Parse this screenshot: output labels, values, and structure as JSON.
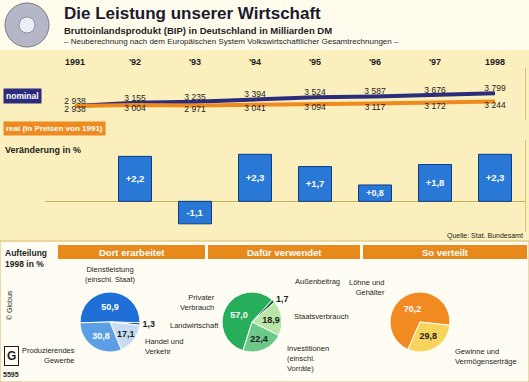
{
  "chart_data": [
    {
      "type": "line",
      "title": "Die Leistung unserer Wirtschaft",
      "subtitle": "Bruttoinlandsprodukt (BIP) in Deutschland in Milliarden DM",
      "annotations": [
        "– Neuberechnung nach dem Europäischen System Volkswirtschaftlicher Gesamtrechnungen –",
        "Quelle: Stat. Bundesamt",
        "© Globus",
        "G",
        "5595"
      ],
      "categories": [
        "1991",
        "'92",
        "'93",
        "'94",
        "'95",
        "'96",
        "'97",
        "1998"
      ],
      "series": [
        {
          "name": "nominal",
          "color": "#2b2d7c",
          "values": [
            2938,
            3155,
            3235,
            3394,
            3524,
            3587,
            3676,
            3799
          ],
          "value_labels": [
            "2 938",
            "3 155",
            "3 235",
            "3 394",
            "3 524",
            "3 587",
            "3 676",
            "3 799"
          ]
        },
        {
          "name": "real (in Preisen von 1991)",
          "color": "#ef8a1f",
          "values": [
            2938,
            3004,
            2971,
            3041,
            3094,
            3117,
            3172,
            3244
          ],
          "value_labels": [
            "2 938",
            "3 004",
            "2 971",
            "3 041",
            "3 094",
            "3 117",
            "3 172",
            "3 244"
          ]
        }
      ],
      "ylim": [
        2000,
        5500
      ],
      "yticks": [],
      "tick_labels": "x",
      "data_labels": true
    },
    {
      "type": "bar",
      "title": "Veränderung in %",
      "categories": [
        "1991",
        "'92",
        "'93",
        "'94",
        "'95",
        "'96",
        "'97",
        "1998"
      ],
      "values": [
        null,
        2.2,
        -1.1,
        2.3,
        1.7,
        0.8,
        1.8,
        2.3
      ],
      "value_labels": [
        null,
        "+2,2",
        "-1,1",
        "+2,3",
        "+1,7",
        "+0,8",
        "+1,8",
        "+2,3"
      ],
      "color": "#2a78d6",
      "ylim": [
        -1.5,
        3
      ],
      "yticks": [],
      "tick_labels": false,
      "data_labels": true
    },
    {
      "type": "pie",
      "title": "Dort erarbeitet",
      "annotations": [
        "Aufteilung 1998 in %"
      ],
      "categories": [
        "Dienstleistung (einschl. Staat)",
        "Landwirtschaft",
        "Handel und Verkehr",
        "Produzierendes Gewerbe"
      ],
      "values": [
        50.9,
        1.3,
        17.1,
        30.8
      ],
      "value_labels": [
        "50,9",
        "1,3",
        "17,1",
        "30,8"
      ],
      "colors": [
        "#1f6fd6",
        "#0b2f73",
        "#c7dcf3",
        "#5d9fe6"
      ],
      "data_labels": true
    },
    {
      "type": "pie",
      "title": "Dafür verwendet",
      "categories": [
        "Privater Verbrauch",
        "Außenbeitrag",
        "Staatsverbrauch",
        "Investitionen (einschl. Vorräte)"
      ],
      "values": [
        57.0,
        1.7,
        18.9,
        22.4
      ],
      "value_labels": [
        "57,0",
        "1,7",
        "18,9",
        "22,4"
      ],
      "colors": [
        "#27ae5a",
        "#0c5a2b",
        "#b9e6a6",
        "#6cc98a"
      ],
      "data_labels": true
    },
    {
      "type": "pie",
      "title": "So verteilt",
      "categories": [
        "Löhne und Gehälter",
        "Gewinne und Vermögenserträge"
      ],
      "values": [
        70.2,
        29.8
      ],
      "value_labels": [
        "70,2",
        "29,8"
      ],
      "colors": [
        "#f28a22",
        "#f9d45c"
      ],
      "data_labels": true
    }
  ]
}
